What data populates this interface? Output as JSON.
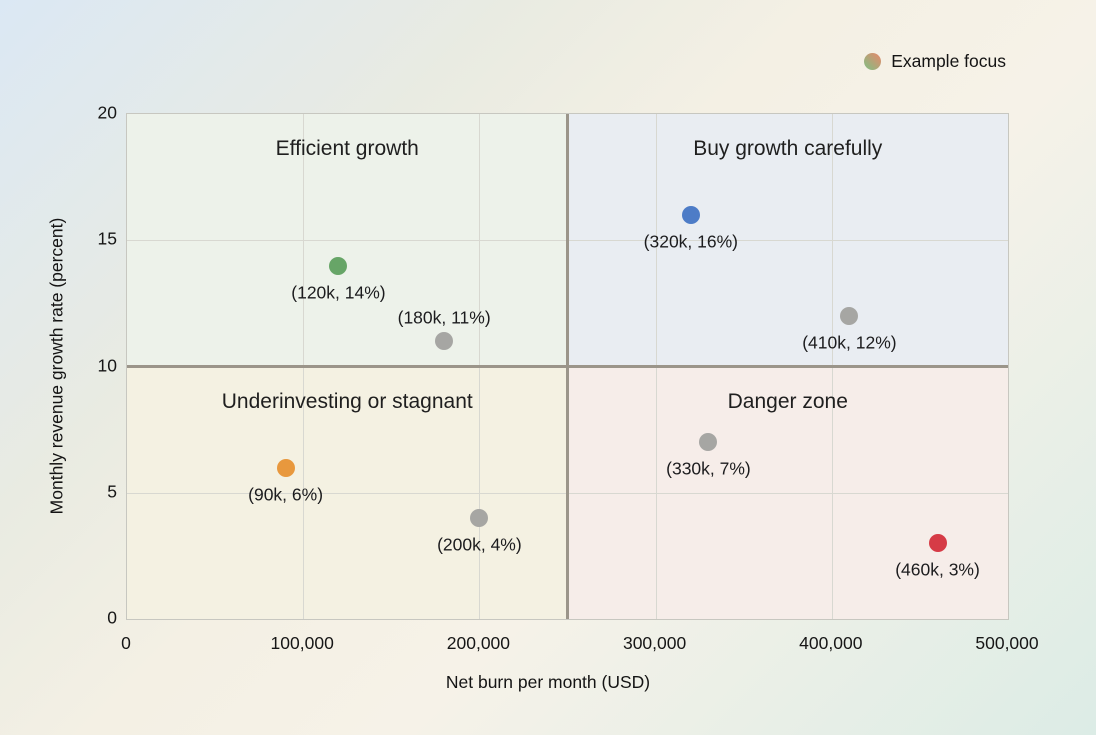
{
  "page": {
    "background_corners": {
      "top_left": "#dbe8f4",
      "top_right": "#f2eee0",
      "bottom_left": "#f7f3ea",
      "bottom_right": "#d9ece6"
    }
  },
  "chart_data": {
    "type": "scatter",
    "title": "",
    "xlabel": "Net burn per month (USD)",
    "ylabel": "Monthly revenue growth rate (percent)",
    "xlim": [
      0,
      500000
    ],
    "ylim": [
      0,
      20
    ],
    "grid": true,
    "gridline_color": "#d8d8d1",
    "x_ticks": {
      "values": [
        0,
        100000,
        200000,
        300000,
        400000,
        500000
      ],
      "labels": [
        "0",
        "100,000",
        "200,000",
        "300,000",
        "400,000",
        "500,000"
      ]
    },
    "y_ticks": {
      "values": [
        0,
        5,
        10,
        15,
        20
      ],
      "labels": [
        "0",
        "5",
        "10",
        "15",
        "20"
      ]
    },
    "quadrant_dividers": {
      "x": 250000,
      "y": 10,
      "color": "#9b958a"
    },
    "quadrants": [
      {
        "name": "Efficient growth",
        "position": "top-left",
        "fill": "#edf2ea"
      },
      {
        "name": "Buy growth carefully",
        "position": "top-right",
        "fill": "#e9edf2"
      },
      {
        "name": "Underinvesting or stagnant",
        "position": "bottom-left",
        "fill": "#f4f1e2"
      },
      {
        "name": "Danger zone",
        "position": "bottom-right",
        "fill": "#f6ede9"
      }
    ],
    "points": [
      {
        "x": 120000,
        "y": 14,
        "label": "(120k, 14%)",
        "color": "#67a567",
        "label_position": "below"
      },
      {
        "x": 180000,
        "y": 11,
        "label": "(180k, 11%)",
        "color": "#a6a6a3",
        "label_position": "above"
      },
      {
        "x": 320000,
        "y": 16,
        "label": "(320k, 16%)",
        "color": "#4d7cc7",
        "label_position": "below"
      },
      {
        "x": 410000,
        "y": 12,
        "label": "(410k, 12%)",
        "color": "#a6a6a3",
        "label_position": "below"
      },
      {
        "x": 90000,
        "y": 6,
        "label": "(90k, 6%)",
        "color": "#e8983d",
        "label_position": "below"
      },
      {
        "x": 200000,
        "y": 4,
        "label": "(200k, 4%)",
        "color": "#a6a6a3",
        "label_position": "below"
      },
      {
        "x": 330000,
        "y": 7,
        "label": "(330k, 7%)",
        "color": "#a6a6a3",
        "label_position": "below"
      },
      {
        "x": 460000,
        "y": 3,
        "label": "(460k, 3%)",
        "color": "#d63b46",
        "label_position": "below"
      }
    ],
    "legend": {
      "label": "Example focus",
      "position": "top-right",
      "marker_gradient": [
        "#93b57f",
        "#d9906f"
      ]
    }
  }
}
